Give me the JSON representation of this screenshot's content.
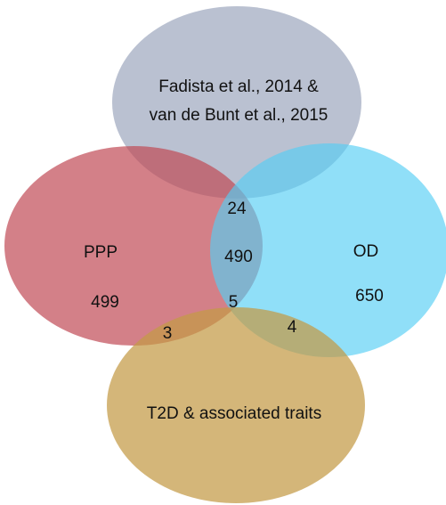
{
  "sets": [
    {
      "label": [
        "Fadista et al., 2014 &",
        "van de Bunt et al., 2015"
      ]
    },
    {
      "label": [
        "PPP"
      ]
    },
    {
      "label": [
        "OD"
      ]
    },
    {
      "label": [
        "T2D & associated traits"
      ]
    }
  ],
  "regions": {
    "ppp_only": 499,
    "od_only": 650,
    "top_ppp_od": 24,
    "ppp_od": 490,
    "all_four": 5,
    "ppp_t2d": 3,
    "od_t2d": 4
  }
}
